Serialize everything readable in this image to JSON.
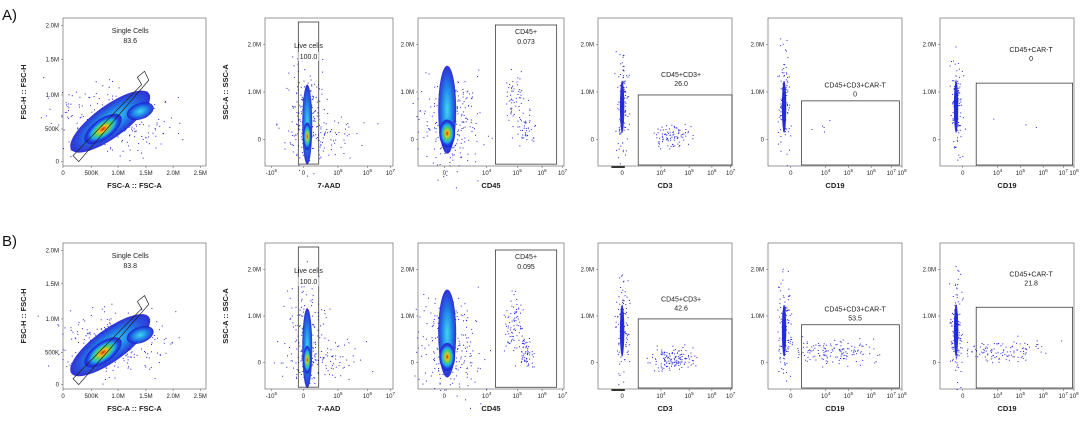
{
  "panel_labels": [
    "A)",
    "B)"
  ],
  "chart_data": [
    {
      "type": "scatter",
      "row": "A",
      "title": "",
      "xlabel": "FSC-A :: FSC-A",
      "ylabel": "FSC-H :: FSC-H",
      "xticks": [
        "0",
        "500K",
        "1.0M",
        "1.5M",
        "2.0M",
        "2.5M"
      ],
      "yticks": [
        "0",
        "500K",
        "1.0M",
        "1.5M",
        "2.0M"
      ],
      "xlim": [
        0,
        2.6
      ],
      "ylim": [
        0,
        2.1
      ],
      "gate": {
        "name": "Single Cells",
        "value": "83.6"
      }
    },
    {
      "type": "scatter",
      "row": "A",
      "title": "",
      "xlabel": "7-AAD",
      "ylabel": "SSC-A :: SSC-A",
      "xticks": [
        "-10^5",
        "0",
        "10^5",
        "10^6",
        "10^7"
      ],
      "yticks": [
        "0",
        "1.0M",
        "2.0M"
      ],
      "gate": {
        "name": "Live cells",
        "value": "100.0"
      }
    },
    {
      "type": "scatter",
      "row": "A",
      "title": "",
      "xlabel": "CD45",
      "ylabel": "",
      "xticks": [
        "0",
        "10^4",
        "10^5",
        "10^6",
        "10^7"
      ],
      "yticks": [
        "0",
        "1.0M",
        "2.0M"
      ],
      "gate": {
        "name": "CD45+",
        "value": "0.073"
      }
    },
    {
      "type": "scatter",
      "row": "A",
      "title": "",
      "xlabel": "CD3",
      "ylabel": "",
      "xticks": [
        "0",
        "10^4",
        "10^5",
        "10^6",
        "10^7"
      ],
      "yticks": [
        "0",
        "1.0M",
        "2.0M"
      ],
      "gate": {
        "name": "CD45+CD3+",
        "value": "26.0"
      }
    },
    {
      "type": "scatter",
      "row": "A",
      "title": "",
      "xlabel": "CD19",
      "ylabel": "",
      "xticks": [
        "0",
        "10^4",
        "10^5",
        "10^6",
        "10^7",
        "10^8"
      ],
      "yticks": [
        "0",
        "1.0M",
        "2.0M"
      ],
      "gate": {
        "name": "CD45+CD3+CAR-T",
        "value": "0"
      }
    },
    {
      "type": "scatter",
      "row": "A",
      "title": "",
      "xlabel": "CD19",
      "ylabel": "",
      "xticks": [
        "0",
        "10^4",
        "10^5",
        "10^6",
        "10^7",
        "10^8"
      ],
      "yticks": [
        "0",
        "1.0M",
        "2.0M"
      ],
      "gate": {
        "name": "CD45+CAR-T",
        "value": "0"
      }
    },
    {
      "type": "scatter",
      "row": "B",
      "title": "",
      "xlabel": "FSC-A :: FSC-A",
      "ylabel": "FSC-H :: FSC-H",
      "xticks": [
        "0",
        "500K",
        "1.0M",
        "1.5M",
        "2.0M",
        "2.5M"
      ],
      "yticks": [
        "0",
        "500K",
        "1.0M",
        "1.5M",
        "2.0M"
      ],
      "xlim": [
        0,
        2.6
      ],
      "ylim": [
        0,
        2.1
      ],
      "gate": {
        "name": "Single Cells",
        "value": "83.8"
      }
    },
    {
      "type": "scatter",
      "row": "B",
      "title": "",
      "xlabel": "7-AAD",
      "ylabel": "SSC-A :: SSC-A",
      "xticks": [
        "-10^5",
        "0",
        "10^5",
        "10^6",
        "10^7"
      ],
      "yticks": [
        "0",
        "1.0M",
        "2.0M"
      ],
      "gate": {
        "name": "Live cells",
        "value": "100.0"
      }
    },
    {
      "type": "scatter",
      "row": "B",
      "title": "",
      "xlabel": "CD45",
      "ylabel": "",
      "xticks": [
        "0",
        "10^4",
        "10^5",
        "10^6",
        "10^7"
      ],
      "yticks": [
        "0",
        "1.0M",
        "2.0M"
      ],
      "gate": {
        "name": "CD45+",
        "value": "0.095"
      }
    },
    {
      "type": "scatter",
      "row": "B",
      "title": "",
      "xlabel": "CD3",
      "ylabel": "",
      "xticks": [
        "0",
        "10^4",
        "10^5",
        "10^6",
        "10^7"
      ],
      "yticks": [
        "0",
        "1.0M",
        "2.0M"
      ],
      "gate": {
        "name": "CD45+CD3+",
        "value": "42.6"
      }
    },
    {
      "type": "scatter",
      "row": "B",
      "title": "",
      "xlabel": "CD19",
      "ylabel": "",
      "xticks": [
        "0",
        "10^4",
        "10^5",
        "10^6",
        "10^7",
        "10^8"
      ],
      "yticks": [
        "0",
        "1.0M",
        "2.0M"
      ],
      "gate": {
        "name": "CD45+CD3+CAR-T",
        "value": "53.5"
      }
    },
    {
      "type": "scatter",
      "row": "B",
      "title": "",
      "xlabel": "CD19",
      "ylabel": "",
      "xticks": [
        "0",
        "10^4",
        "10^5",
        "10^6",
        "10^7",
        "10^8"
      ],
      "yticks": [
        "0",
        "1.0M",
        "2.0M"
      ],
      "gate": {
        "name": "CD45+CAR-T",
        "value": "21.8"
      }
    }
  ]
}
